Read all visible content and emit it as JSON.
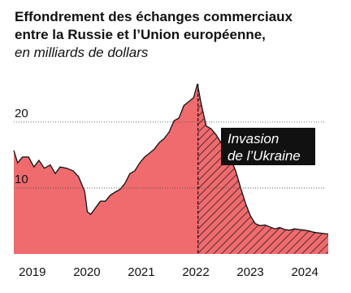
{
  "chart_data": {
    "type": "area",
    "title": [
      "Effondrement des échanges commerciaux",
      "entre la Russie et l’Union européenne,"
    ],
    "subtitle": "en milliards de dollars",
    "annotation": {
      "lines": [
        "Invasion",
        "de l’Ukraine"
      ],
      "x": 2022.04
    },
    "x": [
      2018.66,
      2018.73,
      2018.82,
      2018.93,
      2019.03,
      2019.12,
      2019.22,
      2019.33,
      2019.42,
      2019.51,
      2019.63,
      2019.75,
      2019.85,
      2019.96,
      2020.01,
      2020.07,
      2020.16,
      2020.25,
      2020.34,
      2020.43,
      2020.52,
      2020.61,
      2020.7,
      2020.79,
      2020.88,
      2020.97,
      2021.06,
      2021.15,
      2021.24,
      2021.33,
      2021.42,
      2021.51,
      2021.6,
      2021.69,
      2021.78,
      2021.87,
      2021.96,
      2022.03,
      2022.1,
      2022.19,
      2022.28,
      2022.37,
      2022.46,
      2022.55,
      2022.64,
      2022.73,
      2022.82,
      2022.91,
      2023.0,
      2023.09,
      2023.18,
      2023.27,
      2023.36,
      2023.45,
      2023.54,
      2023.63,
      2023.72,
      2023.81,
      2023.9,
      2023.99,
      2024.07,
      2024.16,
      2024.25,
      2024.34,
      2024.43
    ],
    "values": [
      15.7,
      13.8,
      14.7,
      14.7,
      13.2,
      14.2,
      13.0,
      13.5,
      12.2,
      13.2,
      13.0,
      12.6,
      11.7,
      9.5,
      6.4,
      6.0,
      7.0,
      8.0,
      8.0,
      8.9,
      9.4,
      9.8,
      10.7,
      12.2,
      12.6,
      13.8,
      14.7,
      15.3,
      15.9,
      16.9,
      17.5,
      18.5,
      20.2,
      20.6,
      22.5,
      23.1,
      23.7,
      25.8,
      22.7,
      19.4,
      19.0,
      18.1,
      16.9,
      15.9,
      14.4,
      12.6,
      10.1,
      7.7,
      5.8,
      4.6,
      4.3,
      4.4,
      4.1,
      3.8,
      4.0,
      3.7,
      3.6,
      3.8,
      3.7,
      3.6,
      3.5,
      3.3,
      3.2,
      3.1,
      3.0
    ],
    "color": "#ef6b6e",
    "xlim": [
      2018.66,
      2024.43
    ],
    "xticks": [
      2019,
      2020,
      2021,
      2022,
      2023,
      2024
    ],
    "ylim": [
      0,
      25.8
    ],
    "yticks": [
      10,
      20
    ],
    "grid": true
  }
}
